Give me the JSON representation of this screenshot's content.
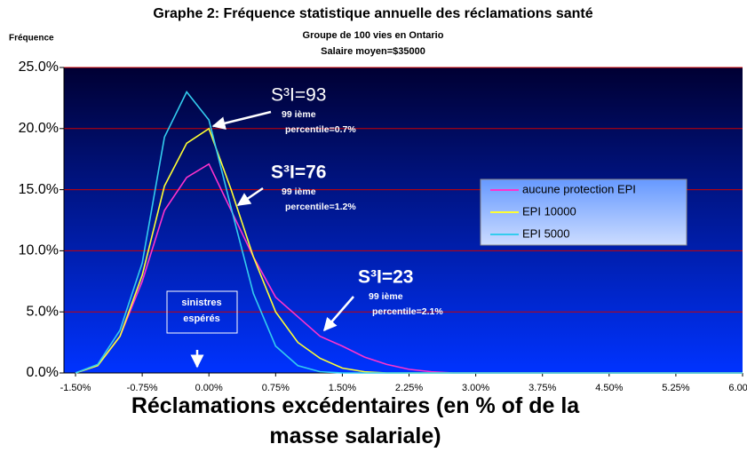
{
  "chart_data": {
    "type": "line",
    "title": "Graphe 2: Fréquence statistique annuelle des réclamations santé",
    "subtitles": [
      "Groupe de 100 vies en Ontario",
      "Salaire moyen=$35000"
    ],
    "y_label": "Fréquence",
    "x_label": "Réclamations excédentaires (en % of de la masse salariale)",
    "x": [
      -1.5,
      -1.25,
      -1.0,
      -0.75,
      -0.5,
      -0.25,
      0,
      0.25,
      0.5,
      0.75,
      1.0,
      1.25,
      1.5,
      1.75,
      2.0,
      2.25,
      2.5,
      2.75,
      3.0,
      3.25,
      3.5,
      3.75,
      4.0,
      4.25,
      4.5,
      4.75,
      5.0,
      5.25,
      5.5,
      5.75,
      6.0
    ],
    "series": [
      {
        "name": "aucune protection EPI",
        "color": "#ff33cc",
        "values": [
          0,
          0.6,
          3,
          7.5,
          13.3,
          16,
          17.1,
          13.3,
          9.5,
          6.2,
          4.6,
          3,
          2.2,
          1.3,
          0.7,
          0.3,
          0.1,
          0,
          0,
          0,
          0,
          0,
          0,
          0,
          0,
          0,
          0,
          0,
          0,
          0,
          0
        ]
      },
      {
        "name": "EPI 10000",
        "color": "#ffff33",
        "values": [
          0,
          0.6,
          3,
          8,
          15.3,
          18.8,
          20,
          15,
          9.5,
          5,
          2.5,
          1.2,
          0.4,
          0.1,
          0,
          0,
          0,
          0,
          0,
          0,
          0,
          0,
          0,
          0,
          0,
          0,
          0,
          0,
          0,
          0,
          0
        ]
      },
      {
        "name": "EPI 5000",
        "color": "#33ccee",
        "values": [
          0,
          0.7,
          3.5,
          9,
          19.3,
          23,
          20.7,
          13.5,
          6.5,
          2.2,
          0.6,
          0.1,
          0,
          0,
          0,
          0,
          0,
          0,
          0,
          0,
          0,
          0,
          0,
          0,
          0,
          0,
          0,
          0,
          0,
          0,
          0
        ]
      }
    ],
    "xlim": [
      -1.63,
      6.0
    ],
    "ylim": [
      0,
      25
    ],
    "xticks": [
      {
        "value": -1.5,
        "label": "-1.50%"
      },
      {
        "value": -0.75,
        "label": "-0.75%"
      },
      {
        "value": 0,
        "label": "0.00%"
      },
      {
        "value": 0.75,
        "label": "0.75%"
      },
      {
        "value": 1.5,
        "label": "1.50%"
      },
      {
        "value": 2.25,
        "label": "2.25%"
      },
      {
        "value": 3,
        "label": "3.00%"
      },
      {
        "value": 3.75,
        "label": "3.75%"
      },
      {
        "value": 4.5,
        "label": "4.50%"
      },
      {
        "value": 5.25,
        "label": "5.25%"
      },
      {
        "value": 6,
        "label": "6.00%"
      }
    ],
    "yticks": [
      {
        "value": 0,
        "label": "0.0%"
      },
      {
        "value": 5,
        "label": "5.0%"
      },
      {
        "value": 10,
        "label": "10.0%"
      },
      {
        "value": 15,
        "label": "15.0%"
      },
      {
        "value": 20,
        "label": "20.0%"
      },
      {
        "value": 25,
        "label": "25.0%"
      }
    ],
    "grid": true,
    "grid_color": "#cc0000",
    "legend_position": "center-right",
    "annotations": [
      {
        "title": "S³I=93",
        "lines": [
          "99 ième",
          "percentile=0.7%"
        ]
      },
      {
        "title": "S³I=76",
        "lines": [
          "99 ième",
          "percentile=1.2%"
        ]
      },
      {
        "title": "S³I=23",
        "lines": [
          "99 ième",
          "percentile=2.1%"
        ]
      }
    ],
    "box_note": [
      "sinistres",
      "espérés"
    ]
  }
}
